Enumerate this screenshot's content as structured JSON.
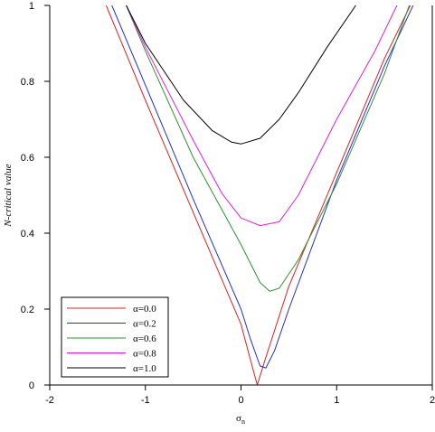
{
  "chart_data": {
    "type": "line",
    "title": "",
    "xlabel": "σn",
    "xlabel_main": "σ",
    "xlabel_sub": "n",
    "ylabel": "N-critical value",
    "xlim": [
      -2,
      2
    ],
    "ylim": [
      0,
      1
    ],
    "xticks": [
      -2,
      -1,
      0,
      1,
      2
    ],
    "xtick_labels": [
      "-2",
      "-1",
      "0",
      "1",
      "2"
    ],
    "yticks": [
      0,
      0.2,
      0.4,
      0.6,
      0.8,
      1
    ],
    "ytick_labels": [
      "0",
      "0.2",
      "0.4",
      "0.6",
      "0.8",
      "1"
    ],
    "grid": false,
    "legend_position": "bottom-left",
    "series": [
      {
        "name": "α=0.0",
        "color": "#e02020",
        "x": [
          -1.41,
          -1.0,
          -0.5,
          0.0,
          0.1,
          0.17,
          0.25,
          0.5,
          1.0,
          1.5,
          1.77
        ],
        "y": [
          1.0,
          0.75,
          0.455,
          0.16,
          0.065,
          0.0,
          0.065,
          0.26,
          0.56,
          0.86,
          1.0
        ]
      },
      {
        "name": "α=0.2",
        "color": "#2030c8",
        "x": [
          -1.35,
          -1.0,
          -0.5,
          0.0,
          0.1,
          0.2,
          0.26,
          0.35,
          0.5,
          1.0,
          1.5,
          1.8
        ],
        "y": [
          1.0,
          0.79,
          0.49,
          0.2,
          0.12,
          0.05,
          0.045,
          0.09,
          0.2,
          0.54,
          0.84,
          1.0
        ]
      },
      {
        "name": "α=0.6",
        "color": "#309030",
        "x": [
          -1.2,
          -1.0,
          -0.5,
          0.0,
          0.2,
          0.3,
          0.4,
          0.6,
          1.0,
          1.5,
          1.76
        ],
        "y": [
          1.0,
          0.88,
          0.6,
          0.37,
          0.27,
          0.247,
          0.255,
          0.33,
          0.53,
          0.82,
          1.0
        ]
      },
      {
        "name": "α=0.8",
        "color": "#e020e0",
        "x": [
          -1.2,
          -1.0,
          -0.5,
          -0.2,
          0.0,
          0.2,
          0.4,
          0.6,
          1.0,
          1.4,
          1.63
        ],
        "y": [
          1.0,
          0.89,
          0.645,
          0.505,
          0.44,
          0.42,
          0.43,
          0.5,
          0.7,
          0.88,
          1.0
        ]
      },
      {
        "name": "α=1.0",
        "color": "#000000",
        "x": [
          -1.2,
          -1.0,
          -0.6,
          -0.3,
          -0.1,
          0.0,
          0.2,
          0.4,
          0.6,
          0.9,
          1.2
        ],
        "y": [
          1.0,
          0.9,
          0.75,
          0.67,
          0.64,
          0.635,
          0.65,
          0.7,
          0.77,
          0.89,
          1.0
        ]
      }
    ]
  }
}
